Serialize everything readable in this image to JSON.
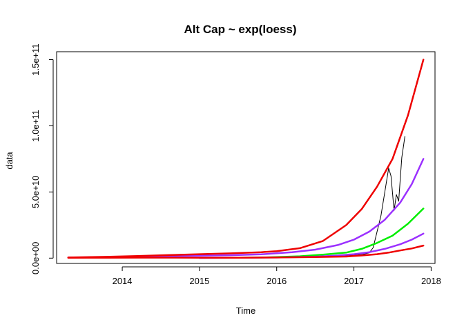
{
  "chart_data": {
    "type": "line",
    "title": "Alt Cap ~ exp(loess)",
    "xlabel": "Time",
    "ylabel": "data",
    "xlim": [
      2013.15,
      2018.05
    ],
    "ylim": [
      -4000000000,
      156000000000
    ],
    "x_ticks": [
      2014,
      2015,
      2016,
      2017,
      2018
    ],
    "x_tick_labels": [
      "2014",
      "2015",
      "2016",
      "2017",
      "2018"
    ],
    "y_ticks": [
      0,
      50000000000,
      100000000000,
      150000000000
    ],
    "y_tick_labels": [
      "0.0e+00",
      "5.0e+10",
      "1.0e+11",
      "1.5e+11"
    ],
    "grid": false,
    "series": [
      {
        "color": "#000000",
        "width": 1,
        "x": [
          2013.3,
          2013.8,
          2014.2,
          2014.6,
          2015.0,
          2015.5,
          2016.0,
          2016.5,
          2016.9,
          2017.1,
          2017.2,
          2017.25,
          2017.3,
          2017.35,
          2017.4,
          2017.45,
          2017.48,
          2017.52,
          2017.55,
          2017.58,
          2017.6,
          2017.62,
          2017.66
        ],
        "y": [
          500000000,
          600000000,
          450000000,
          400000000,
          300000000,
          400000000,
          700000000,
          1200000000,
          1800000000,
          2600000000,
          4000000000,
          8000000000,
          20000000000,
          32000000000,
          50000000000,
          68000000000,
          62000000000,
          36000000000,
          48000000000,
          43000000000,
          60000000000,
          76000000000,
          92000000000
        ]
      },
      {
        "color": "#9b30ff",
        "width": 2.5,
        "x": [
          2013.3,
          2013.8,
          2014.2,
          2014.6,
          2015.0,
          2015.4,
          2015.8,
          2016.2,
          2016.5,
          2016.8,
          2017.0,
          2017.2,
          2017.4,
          2017.6,
          2017.75,
          2017.9
        ],
        "y": [
          500000000,
          800000000,
          1100000000,
          1500000000,
          1800000000,
          2200000000,
          2900000000,
          4500000000,
          6400000000,
          10000000000,
          14000000000,
          20000000000,
          29000000000,
          42000000000,
          56000000000,
          75000000000
        ]
      },
      {
        "color": "#00ee00",
        "width": 2.5,
        "x": [
          2015.5,
          2015.8,
          2016.0,
          2016.3,
          2016.6,
          2016.9,
          2017.1,
          2017.3,
          2017.5,
          2017.7,
          2017.9
        ],
        "y": [
          300000000,
          500000000,
          800000000,
          1400000000,
          2600000000,
          4200000000,
          7000000000,
          11500000000,
          17000000000,
          26000000000,
          37500000000
        ]
      },
      {
        "color": "#9b30ff",
        "width": 2.5,
        "x": [
          2015.0,
          2015.5,
          2016.0,
          2016.5,
          2016.8,
          2017.0,
          2017.2,
          2017.4,
          2017.6,
          2017.75,
          2017.9
        ],
        "y": [
          100000000,
          250000000,
          500000000,
          1100000000,
          2000000000,
          3000000000,
          4500000000,
          7000000000,
          10500000000,
          14000000000,
          18500000000
        ]
      },
      {
        "color": "#ee0000",
        "width": 2.5,
        "x": [
          2013.3,
          2013.8,
          2014.2,
          2014.6,
          2015.0,
          2015.5,
          2016.0,
          2016.5,
          2016.9,
          2017.1,
          2017.3,
          2017.45,
          2017.6,
          2017.75,
          2017.9
        ],
        "y": [
          200000000,
          300000000,
          400000000,
          400000000,
          300000000,
          300000000,
          500000000,
          800000000,
          1200000000,
          2000000000,
          3000000000,
          4200000000,
          5800000000,
          7300000000,
          9500000000
        ]
      },
      {
        "color": "#ee0000",
        "width": 2.5,
        "x": [
          2013.3,
          2013.8,
          2014.2,
          2014.6,
          2015.0,
          2015.4,
          2015.8,
          2016.0,
          2016.3,
          2016.6,
          2016.9,
          2017.1,
          2017.3,
          2017.5,
          2017.7,
          2017.9
        ],
        "y": [
          500000000,
          1000000000,
          1600000000,
          2300000000,
          3000000000,
          3600000000,
          4500000000,
          5200000000,
          7500000000,
          13000000000,
          25000000000,
          37000000000,
          54000000000,
          75000000000,
          108000000000,
          150000000000
        ]
      }
    ]
  }
}
